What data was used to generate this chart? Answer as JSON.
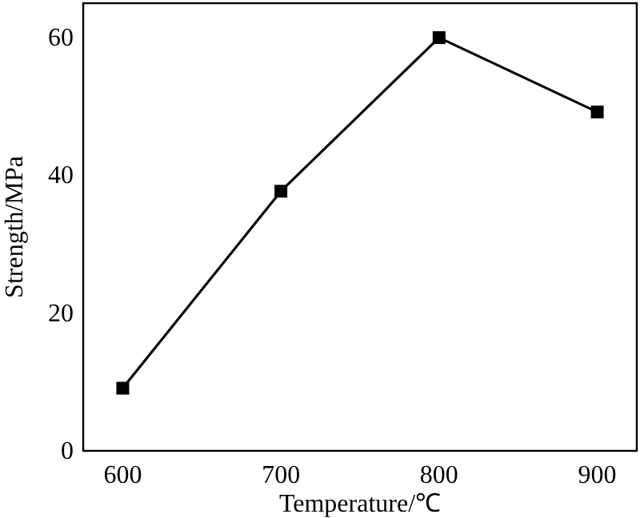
{
  "chart_data": {
    "type": "line",
    "xlabel": "Temperature/℃",
    "ylabel": "Strength/MPa",
    "x": [
      600,
      700,
      800,
      900
    ],
    "series": [
      {
        "color": "#000000",
        "values": [
          9.1,
          37.7,
          60,
          49.2
        ]
      }
    ],
    "xlim": [
      575,
      925
    ],
    "xticks": [
      600,
      700,
      800,
      900
    ],
    "ylim": [
      0,
      65
    ],
    "yticks": [
      0,
      20,
      40,
      60
    ],
    "marker": "square",
    "line_style": "solid",
    "grid": false
  }
}
